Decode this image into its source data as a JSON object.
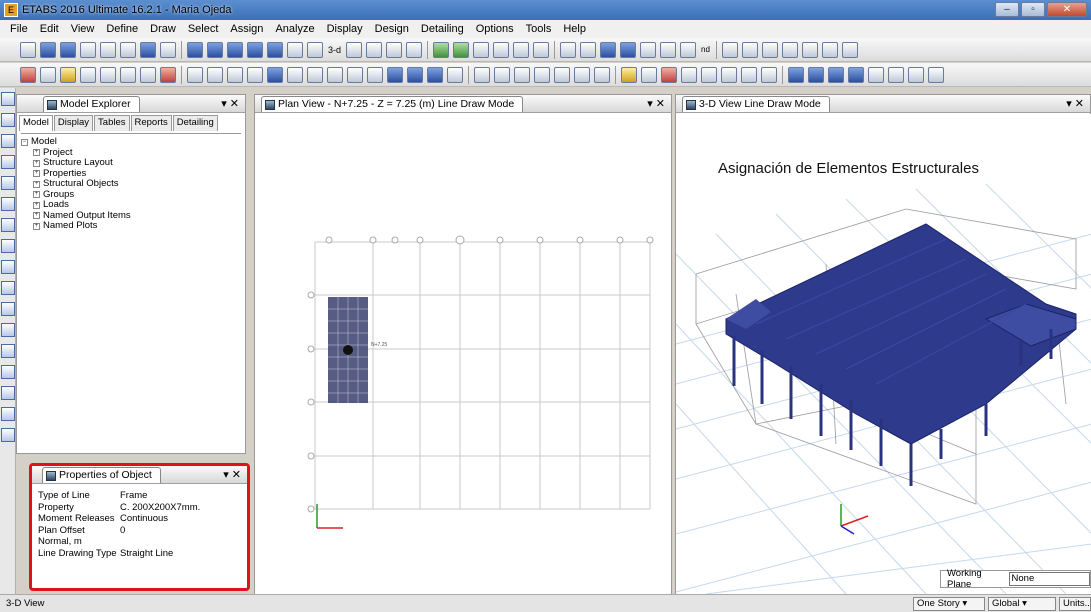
{
  "titlebar": {
    "title": "ETABS 2016 Ultimate 16.2.1 - Maria Ojeda",
    "app_icon": "E"
  },
  "menu": [
    "File",
    "Edit",
    "View",
    "Define",
    "Draw",
    "Select",
    "Assign",
    "Analyze",
    "Display",
    "Design",
    "Detailing",
    "Options",
    "Tools",
    "Help"
  ],
  "toolbar1_text": {
    "view3d": "3-d",
    "nd": "nd"
  },
  "explorer": {
    "title": "Model Explorer",
    "tabs": [
      "Model",
      "Display",
      "Tables",
      "Reports",
      "Detailing"
    ],
    "root": "Model",
    "children": [
      "Project",
      "Structure Layout",
      "Properties",
      "Structural Objects",
      "Groups",
      "Loads",
      "Named Output Items",
      "Named Plots"
    ]
  },
  "properties": {
    "title": "Properties of Object",
    "rows": [
      {
        "key": "Type of Line",
        "value": "Frame"
      },
      {
        "key": "Property",
        "value": "C. 200X200X7mm."
      },
      {
        "key": "Moment Releases",
        "value": "Continuous"
      },
      {
        "key": "Plan Offset Normal, m",
        "value": "0"
      },
      {
        "key": "Line Drawing Type",
        "value": "Straight Line"
      }
    ]
  },
  "plan_view": {
    "title": "Plan View - N+7.25 - Z = 7.25 (m)  Line Draw Mode",
    "label": "N+7.25"
  },
  "view3d": {
    "title": "3-D View  Line Draw Mode",
    "caption": "Asignación de Elementos Estructurales",
    "member_color": "#2e3a8c"
  },
  "working_plane": {
    "label": "Working Plane",
    "value": "None"
  },
  "status": {
    "text": "3-D View",
    "story": "One Story",
    "coord": "Global",
    "units": "Units..."
  }
}
